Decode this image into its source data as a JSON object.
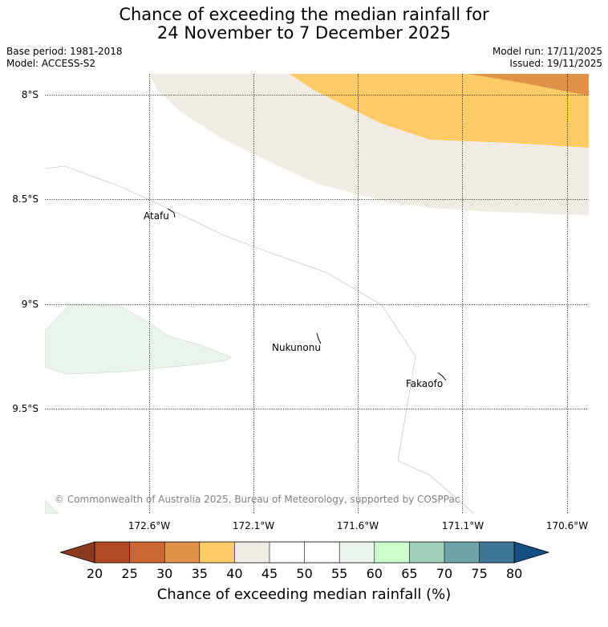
{
  "title": {
    "line1": "Chance of exceeding the median rainfall for",
    "line2": "24 November to 7 December 2025"
  },
  "meta": {
    "base_period": "Base period: 1981-2018",
    "model": "Model: ACCESS-S2",
    "model_run": "Model run: 17/11/2025",
    "issued": "Issued: 19/11/2025"
  },
  "map": {
    "lat_labels": [
      "8°S",
      "8.5°S",
      "9°S",
      "9.5°S"
    ],
    "lon_labels": [
      "172.6°W",
      "172.1°W",
      "171.6°W",
      "171.1°W",
      "170.6°W"
    ],
    "places": [
      {
        "name": "Atafu"
      },
      {
        "name": "Nukunonu"
      },
      {
        "name": "Fakaofo"
      }
    ],
    "copyright": "© Commonwealth of Australia 2025, Bureau of Meteorology, supported by COSPPac"
  },
  "colorbar": {
    "ticks": [
      "20",
      "25",
      "30",
      "35",
      "40",
      "45",
      "50",
      "55",
      "60",
      "65",
      "70",
      "75",
      "80"
    ],
    "colors": [
      "#8b3a1f",
      "#b04a25",
      "#cc6633",
      "#e09148",
      "#fecb66",
      "#f0ebe5",
      "#ffffff",
      "#ffffff",
      "#eaf4ea",
      "#ccffcc",
      "#9fd1ba",
      "#6da4a7",
      "#3d7595",
      "#154e80"
    ],
    "title": "Chance of exceeding median rainfall (%)"
  }
}
